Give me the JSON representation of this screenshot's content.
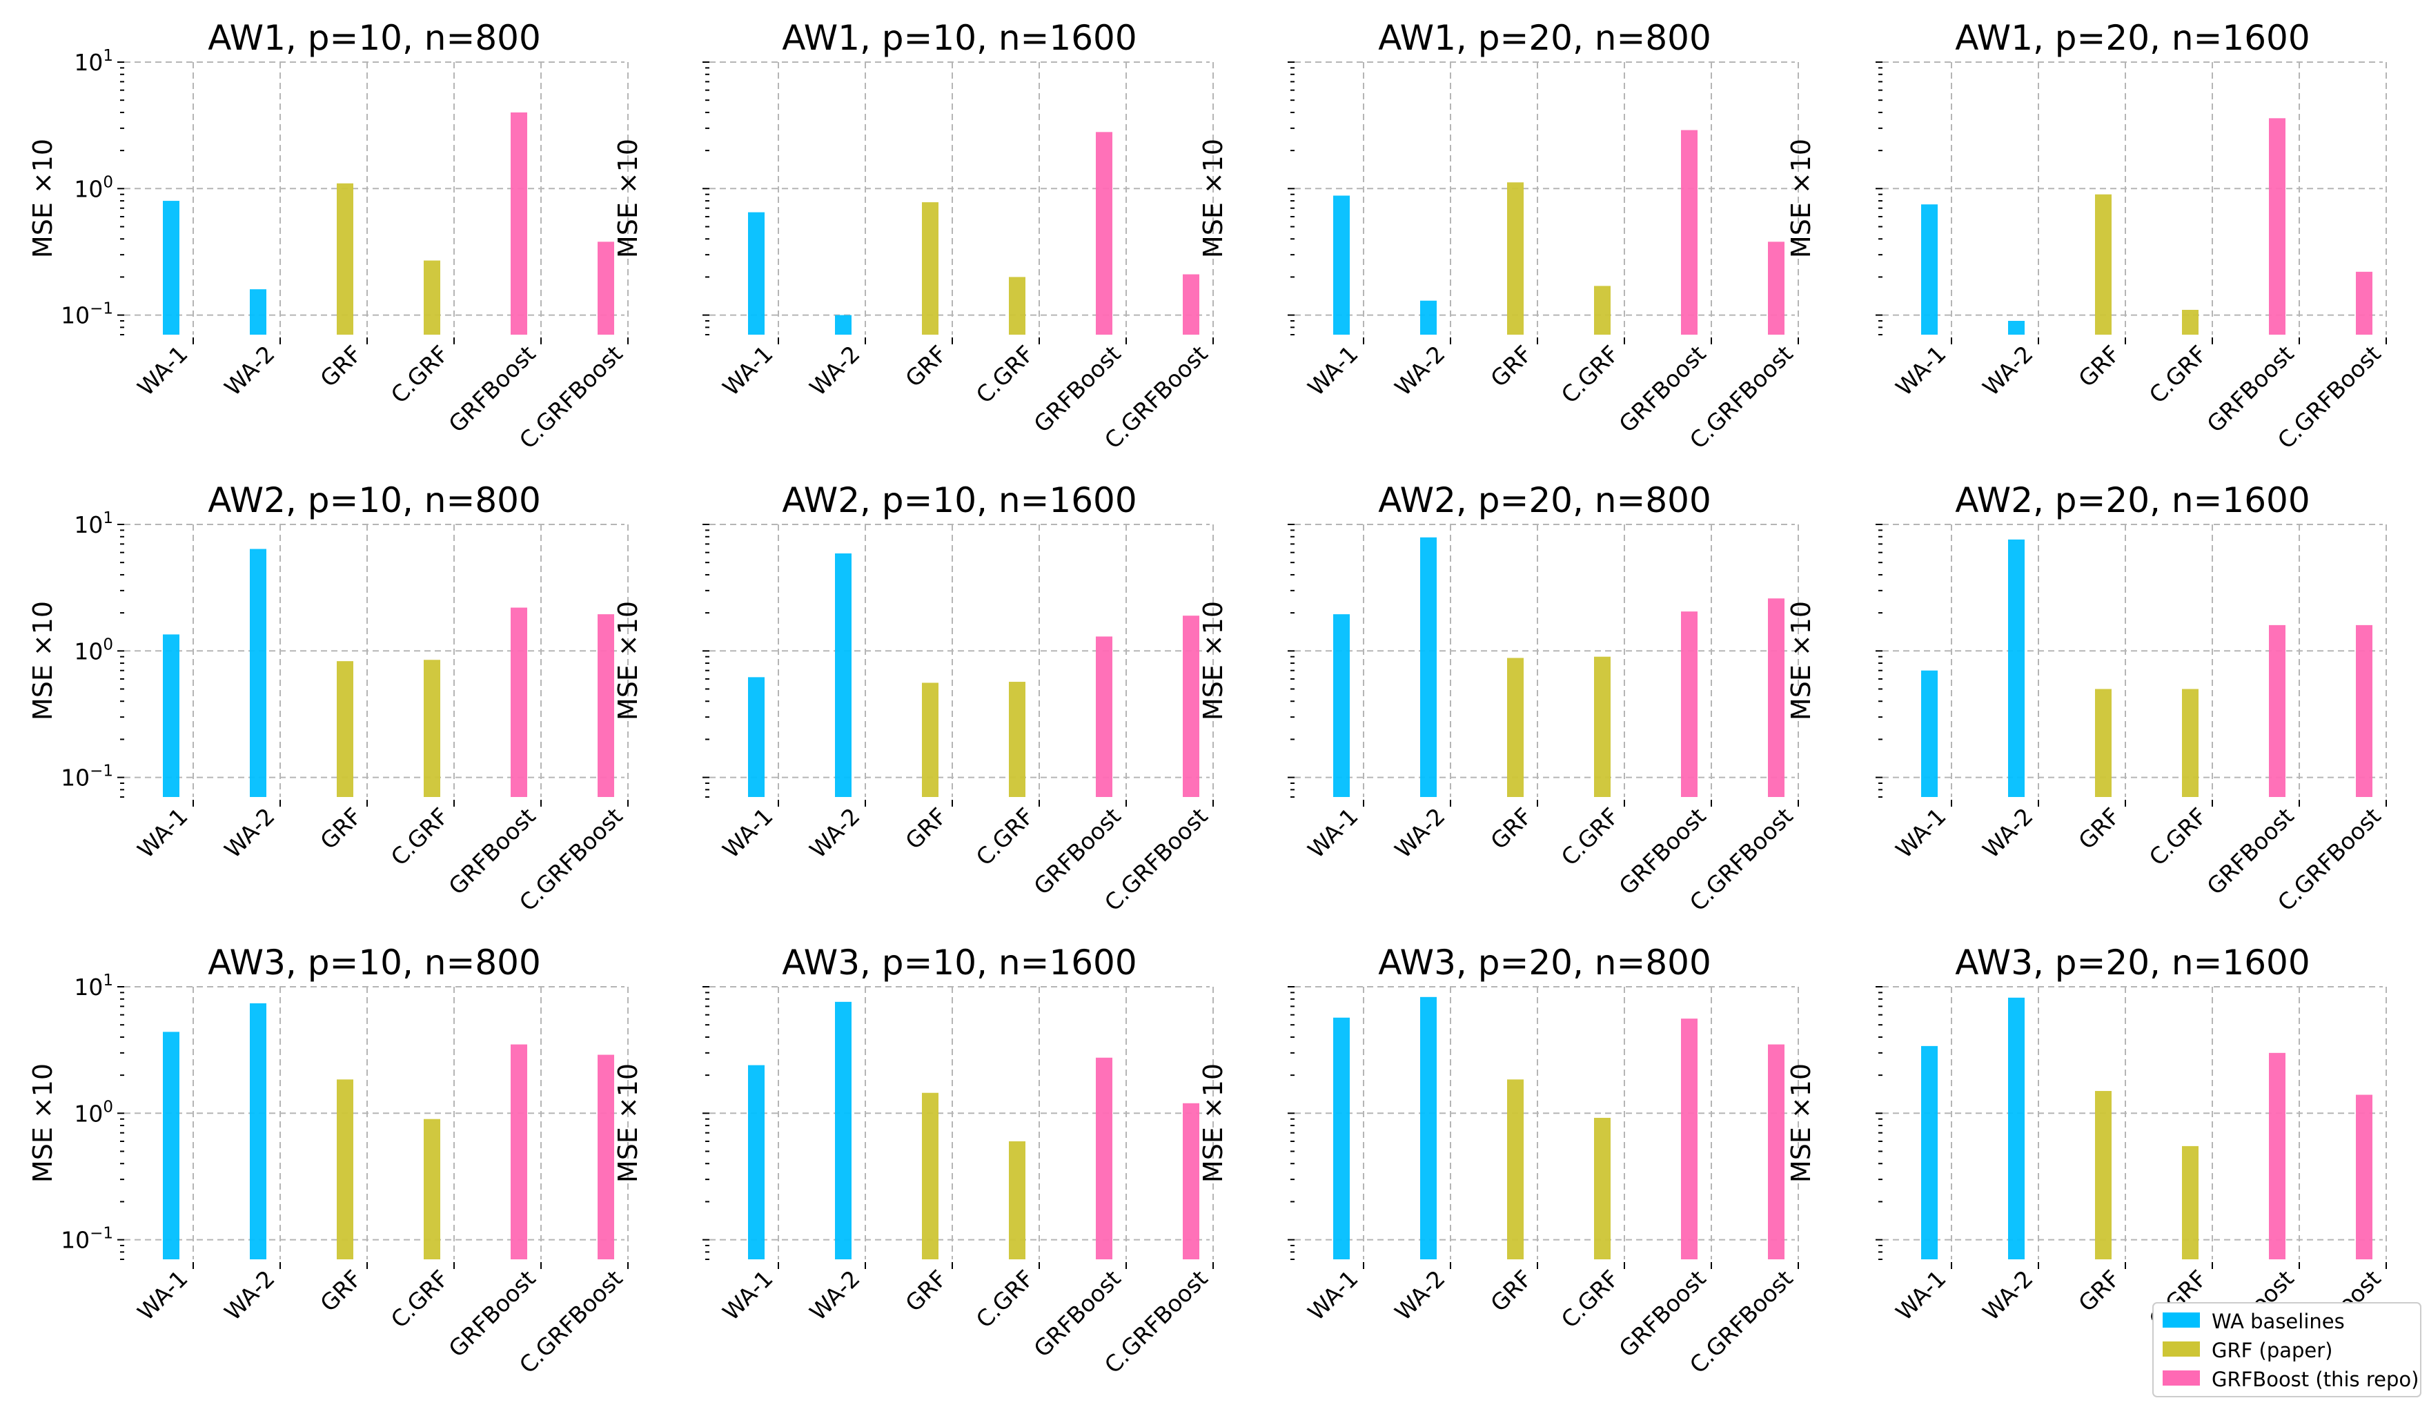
{
  "chart_data": [
    {
      "type": "bar",
      "title": "AW1, p=10, n=800",
      "ylabel": "MSE ×10",
      "yscale": "log",
      "ylim": [
        0.07,
        10
      ],
      "categories": [
        "WA-1",
        "WA-2",
        "GRF",
        "C.GRF",
        "GRFBoost",
        "C.GRFBoost"
      ],
      "values": [
        0.8,
        0.16,
        1.1,
        0.27,
        4.0,
        0.38
      ]
    },
    {
      "type": "bar",
      "title": "AW1, p=10, n=1600",
      "ylabel": "MSE ×10",
      "yscale": "log",
      "ylim": [
        0.07,
        10
      ],
      "categories": [
        "WA-1",
        "WA-2",
        "GRF",
        "C.GRF",
        "GRFBoost",
        "C.GRFBoost"
      ],
      "values": [
        0.65,
        0.1,
        0.78,
        0.2,
        2.8,
        0.21
      ]
    },
    {
      "type": "bar",
      "title": "AW1, p=20, n=800",
      "ylabel": "MSE ×10",
      "yscale": "log",
      "ylim": [
        0.07,
        10
      ],
      "categories": [
        "WA-1",
        "WA-2",
        "GRF",
        "C.GRF",
        "GRFBoost",
        "C.GRFBoost"
      ],
      "values": [
        0.88,
        0.13,
        1.12,
        0.17,
        2.9,
        0.38
      ]
    },
    {
      "type": "bar",
      "title": "AW1, p=20, n=1600",
      "ylabel": "MSE ×10",
      "yscale": "log",
      "ylim": [
        0.07,
        10
      ],
      "categories": [
        "WA-1",
        "WA-2",
        "GRF",
        "C.GRF",
        "GRFBoost",
        "C.GRFBoost"
      ],
      "values": [
        0.75,
        0.09,
        0.9,
        0.11,
        3.6,
        0.22
      ]
    },
    {
      "type": "bar",
      "title": "AW2, p=10, n=800",
      "ylabel": "MSE ×10",
      "yscale": "log",
      "ylim": [
        0.07,
        10
      ],
      "categories": [
        "WA-1",
        "WA-2",
        "GRF",
        "C.GRF",
        "GRFBoost",
        "C.GRFBoost"
      ],
      "values": [
        1.35,
        6.4,
        0.83,
        0.85,
        2.2,
        1.95
      ]
    },
    {
      "type": "bar",
      "title": "AW2, p=10, n=1600",
      "ylabel": "MSE ×10",
      "yscale": "log",
      "ylim": [
        0.07,
        10
      ],
      "categories": [
        "WA-1",
        "WA-2",
        "GRF",
        "C.GRF",
        "GRFBoost",
        "C.GRFBoost"
      ],
      "values": [
        0.62,
        5.9,
        0.56,
        0.57,
        1.3,
        1.9
      ]
    },
    {
      "type": "bar",
      "title": "AW2, p=20, n=800",
      "ylabel": "MSE ×10",
      "yscale": "log",
      "ylim": [
        0.07,
        10
      ],
      "categories": [
        "WA-1",
        "WA-2",
        "GRF",
        "C.GRF",
        "GRFBoost",
        "C.GRFBoost"
      ],
      "values": [
        1.95,
        7.9,
        0.88,
        0.9,
        2.05,
        2.6
      ]
    },
    {
      "type": "bar",
      "title": "AW2, p=20, n=1600",
      "ylabel": "MSE ×10",
      "yscale": "log",
      "ylim": [
        0.07,
        10
      ],
      "categories": [
        "WA-1",
        "WA-2",
        "GRF",
        "C.GRF",
        "GRFBoost",
        "C.GRFBoost"
      ],
      "values": [
        0.7,
        7.6,
        0.5,
        0.5,
        1.6,
        1.6
      ]
    },
    {
      "type": "bar",
      "title": "AW3, p=10, n=800",
      "ylabel": "MSE ×10",
      "yscale": "log",
      "ylim": [
        0.07,
        10
      ],
      "categories": [
        "WA-1",
        "WA-2",
        "GRF",
        "C.GRF",
        "GRFBoost",
        "C.GRFBoost"
      ],
      "values": [
        4.4,
        7.4,
        1.85,
        0.9,
        3.5,
        2.9
      ]
    },
    {
      "type": "bar",
      "title": "AW3, p=10, n=1600",
      "ylabel": "MSE ×10",
      "yscale": "log",
      "ylim": [
        0.07,
        10
      ],
      "categories": [
        "WA-1",
        "WA-2",
        "GRF",
        "C.GRF",
        "GRFBoost",
        "C.GRFBoost"
      ],
      "values": [
        2.4,
        7.6,
        1.45,
        0.6,
        2.75,
        1.2
      ]
    },
    {
      "type": "bar",
      "title": "AW3, p=20, n=800",
      "ylabel": "MSE ×10",
      "yscale": "log",
      "ylim": [
        0.07,
        10
      ],
      "categories": [
        "WA-1",
        "WA-2",
        "GRF",
        "C.GRF",
        "GRFBoost",
        "C.GRFBoost"
      ],
      "values": [
        5.7,
        8.3,
        1.85,
        0.92,
        5.6,
        3.5
      ]
    },
    {
      "type": "bar",
      "title": "AW3, p=20, n=1600",
      "ylabel": "MSE ×10",
      "yscale": "log",
      "ylim": [
        0.07,
        10
      ],
      "categories": [
        "WA-1",
        "WA-2",
        "GRF",
        "C.GRF",
        "GRFBoost",
        "C.GRFBoost"
      ],
      "values": [
        3.4,
        8.2,
        1.5,
        0.55,
        3.0,
        1.4
      ]
    }
  ],
  "legend": {
    "placement": "bottom-right",
    "items": [
      {
        "label": "WA baselines",
        "color": "#00bfff"
      },
      {
        "label": "GRF (paper)",
        "color": "#cdc535"
      },
      {
        "label": "GRFBoost (this repo)",
        "color": "#ff69b4"
      }
    ]
  },
  "bar_colors": [
    "#00bfff",
    "#00bfff",
    "#cdc535",
    "#cdc535",
    "#ff69b4",
    "#ff69b4"
  ],
  "y_tick_labels": [
    {
      "base": "10",
      "exp": "1",
      "value": 10
    },
    {
      "base": "10",
      "exp": "0",
      "value": 1
    },
    {
      "base": "10",
      "exp": "−1",
      "value": 0.1
    }
  ],
  "grid": true
}
